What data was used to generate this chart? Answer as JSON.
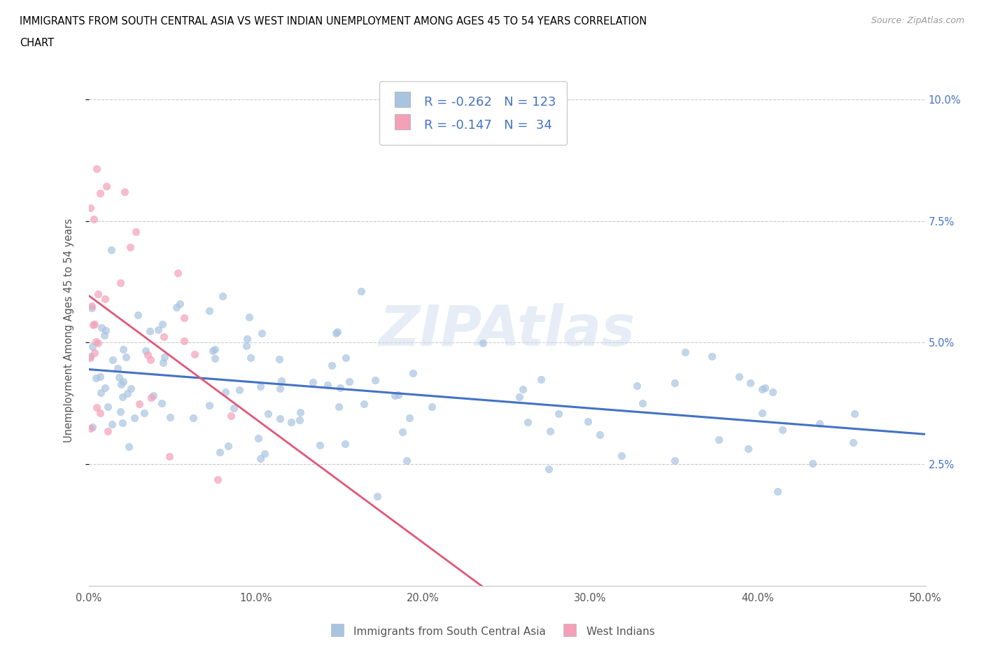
{
  "title_line1": "IMMIGRANTS FROM SOUTH CENTRAL ASIA VS WEST INDIAN UNEMPLOYMENT AMONG AGES 45 TO 54 YEARS CORRELATION",
  "title_line2": "CHART",
  "source": "Source: ZipAtlas.com",
  "ylabel": "Unemployment Among Ages 45 to 54 years",
  "xlim": [
    0.0,
    50.0
  ],
  "ylim": [
    0.0,
    10.5
  ],
  "xticks": [
    0.0,
    10.0,
    20.0,
    30.0,
    40.0,
    50.0
  ],
  "yticks": [
    2.5,
    5.0,
    7.5,
    10.0
  ],
  "xticklabels": [
    "0.0%",
    "10.0%",
    "20.0%",
    "30.0%",
    "40.0%",
    "50.0%"
  ],
  "yticklabels_right": [
    "2.5%",
    "5.0%",
    "7.5%",
    "10.0%"
  ],
  "blue_color": "#a8c4e0",
  "pink_color": "#f4a0b8",
  "blue_line_color": "#4472c4",
  "pink_line_color": "#e05878",
  "pink_dash_color": "#e8b0c0",
  "legend_text_color": "#4472c4",
  "R_blue": -0.262,
  "N_blue": 123,
  "R_pink": -0.147,
  "N_pink": 34,
  "blue_label": "Immigrants from South Central Asia",
  "pink_label": "West Indians",
  "watermark": "ZIPAtlas",
  "blue_intercept": 4.5,
  "blue_slope": -0.032,
  "pink_intercept": 5.8,
  "pink_slope": -0.22
}
